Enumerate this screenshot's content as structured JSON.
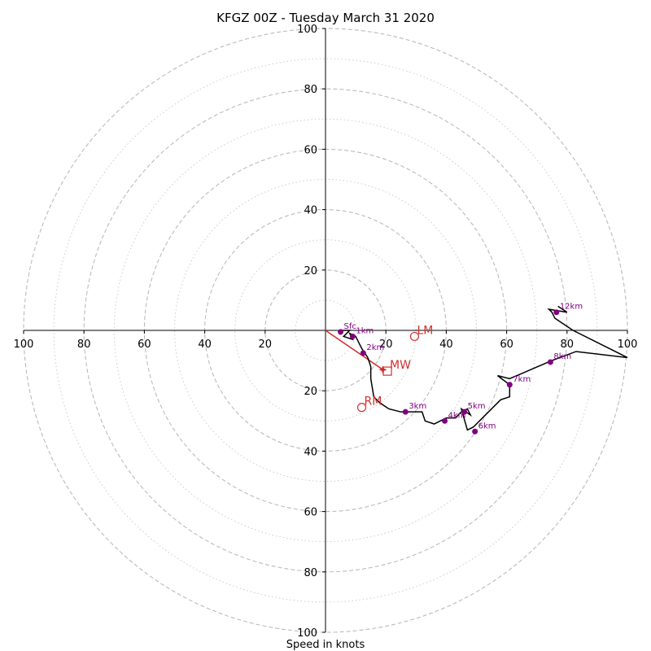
{
  "chart_data": {
    "type": "scatter",
    "title": "KFGZ 00Z - Tuesday March 31 2020",
    "xlabel": "Speed in knots",
    "ylabel": "",
    "xlim": [
      -100,
      100
    ],
    "ylim": [
      -100,
      100
    ],
    "major_rings": [
      20,
      40,
      60,
      80,
      100
    ],
    "minor_rings": [
      10,
      30,
      50,
      70,
      90
    ],
    "tick_labels": {
      "x": [
        "100",
        "80",
        "60",
        "40",
        "20",
        "20",
        "40",
        "60",
        "80",
        "100"
      ],
      "x_values": [
        -100,
        -80,
        -60,
        -40,
        -20,
        20,
        40,
        60,
        80,
        100
      ],
      "y": [
        "100",
        "80",
        "60",
        "40",
        "20",
        "20",
        "40",
        "60",
        "80",
        "100"
      ],
      "y_values": [
        100,
        80,
        60,
        40,
        20,
        -20,
        -40,
        -60,
        -80,
        -100
      ]
    },
    "hodograph": {
      "color": "#000000",
      "u": [
        5,
        8,
        6,
        9,
        8,
        10,
        12,
        14,
        15,
        15,
        16,
        18,
        21,
        25,
        27,
        32,
        33,
        36,
        38,
        40,
        43,
        45,
        47,
        48,
        45,
        47,
        49,
        52,
        58,
        61,
        61,
        61,
        57,
        61,
        68,
        75,
        83,
        100,
        82,
        76,
        75,
        74,
        80,
        77
      ],
      "v": [
        0,
        0,
        -2,
        -3,
        -1,
        -2,
        -6,
        -9,
        -12,
        -16,
        -22,
        -24,
        -26,
        -27,
        -27,
        -27,
        -30,
        -31,
        -30,
        -29,
        -29,
        -27,
        -26,
        -28,
        -26,
        -33,
        -32,
        -29,
        -23,
        -22,
        -20,
        -18,
        -15,
        -16,
        -13,
        -10,
        -7,
        -9,
        0,
        4,
        6,
        7,
        6,
        8
      ]
    },
    "height_markers": {
      "color": "#800080",
      "labels": [
        "Sfc",
        "1km",
        "2km",
        "3km",
        "4km",
        "5km",
        "6km",
        "7km",
        "8km",
        "12km"
      ],
      "u": [
        5,
        9,
        12.5,
        26.5,
        39.5,
        46,
        49.5,
        61,
        74.5,
        76.5
      ],
      "v": [
        -0.5,
        -2,
        -7.5,
        -27,
        -30,
        -27,
        -33.5,
        -18,
        -10.5,
        6
      ]
    },
    "storm_motion": {
      "color": "#d32f2f",
      "labels": [
        "LM",
        "MW",
        "RM"
      ],
      "u": [
        29.5,
        20.5,
        12
      ],
      "v": [
        -2,
        -13.5,
        -25.5
      ],
      "markers": [
        "circle",
        "square",
        "circle"
      ],
      "shear_vector": {
        "u0": 0,
        "v0": 0,
        "u1": 19,
        "v1": -13
      }
    }
  }
}
